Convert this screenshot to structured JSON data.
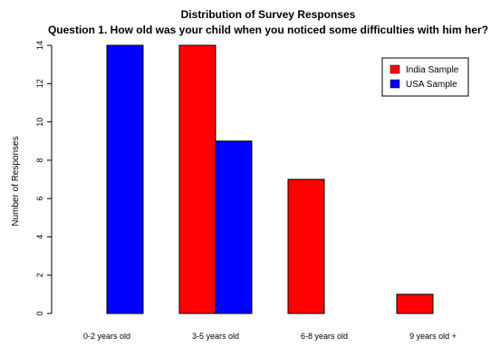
{
  "chart_data": {
    "type": "bar",
    "title": "Distribution of Survey Responses",
    "subtitle": "Question 1. How old was your child when you noticed some difficulties with him her?",
    "xlabel": "",
    "ylabel": "Number of Responses",
    "categories": [
      "0-2 years old",
      "3-5 years old",
      "6-8 years old",
      "9 years old +"
    ],
    "series": [
      {
        "name": "India Sample",
        "color": "#ff0000",
        "values": [
          0,
          14,
          7,
          1
        ]
      },
      {
        "name": "USA Sample",
        "color": "#0000ff",
        "values": [
          14,
          9,
          0,
          0
        ]
      }
    ],
    "ylim": [
      0,
      14
    ],
    "yticks": [
      0,
      2,
      4,
      6,
      8,
      10,
      12,
      14
    ],
    "grid": false,
    "legend": "top-right"
  }
}
